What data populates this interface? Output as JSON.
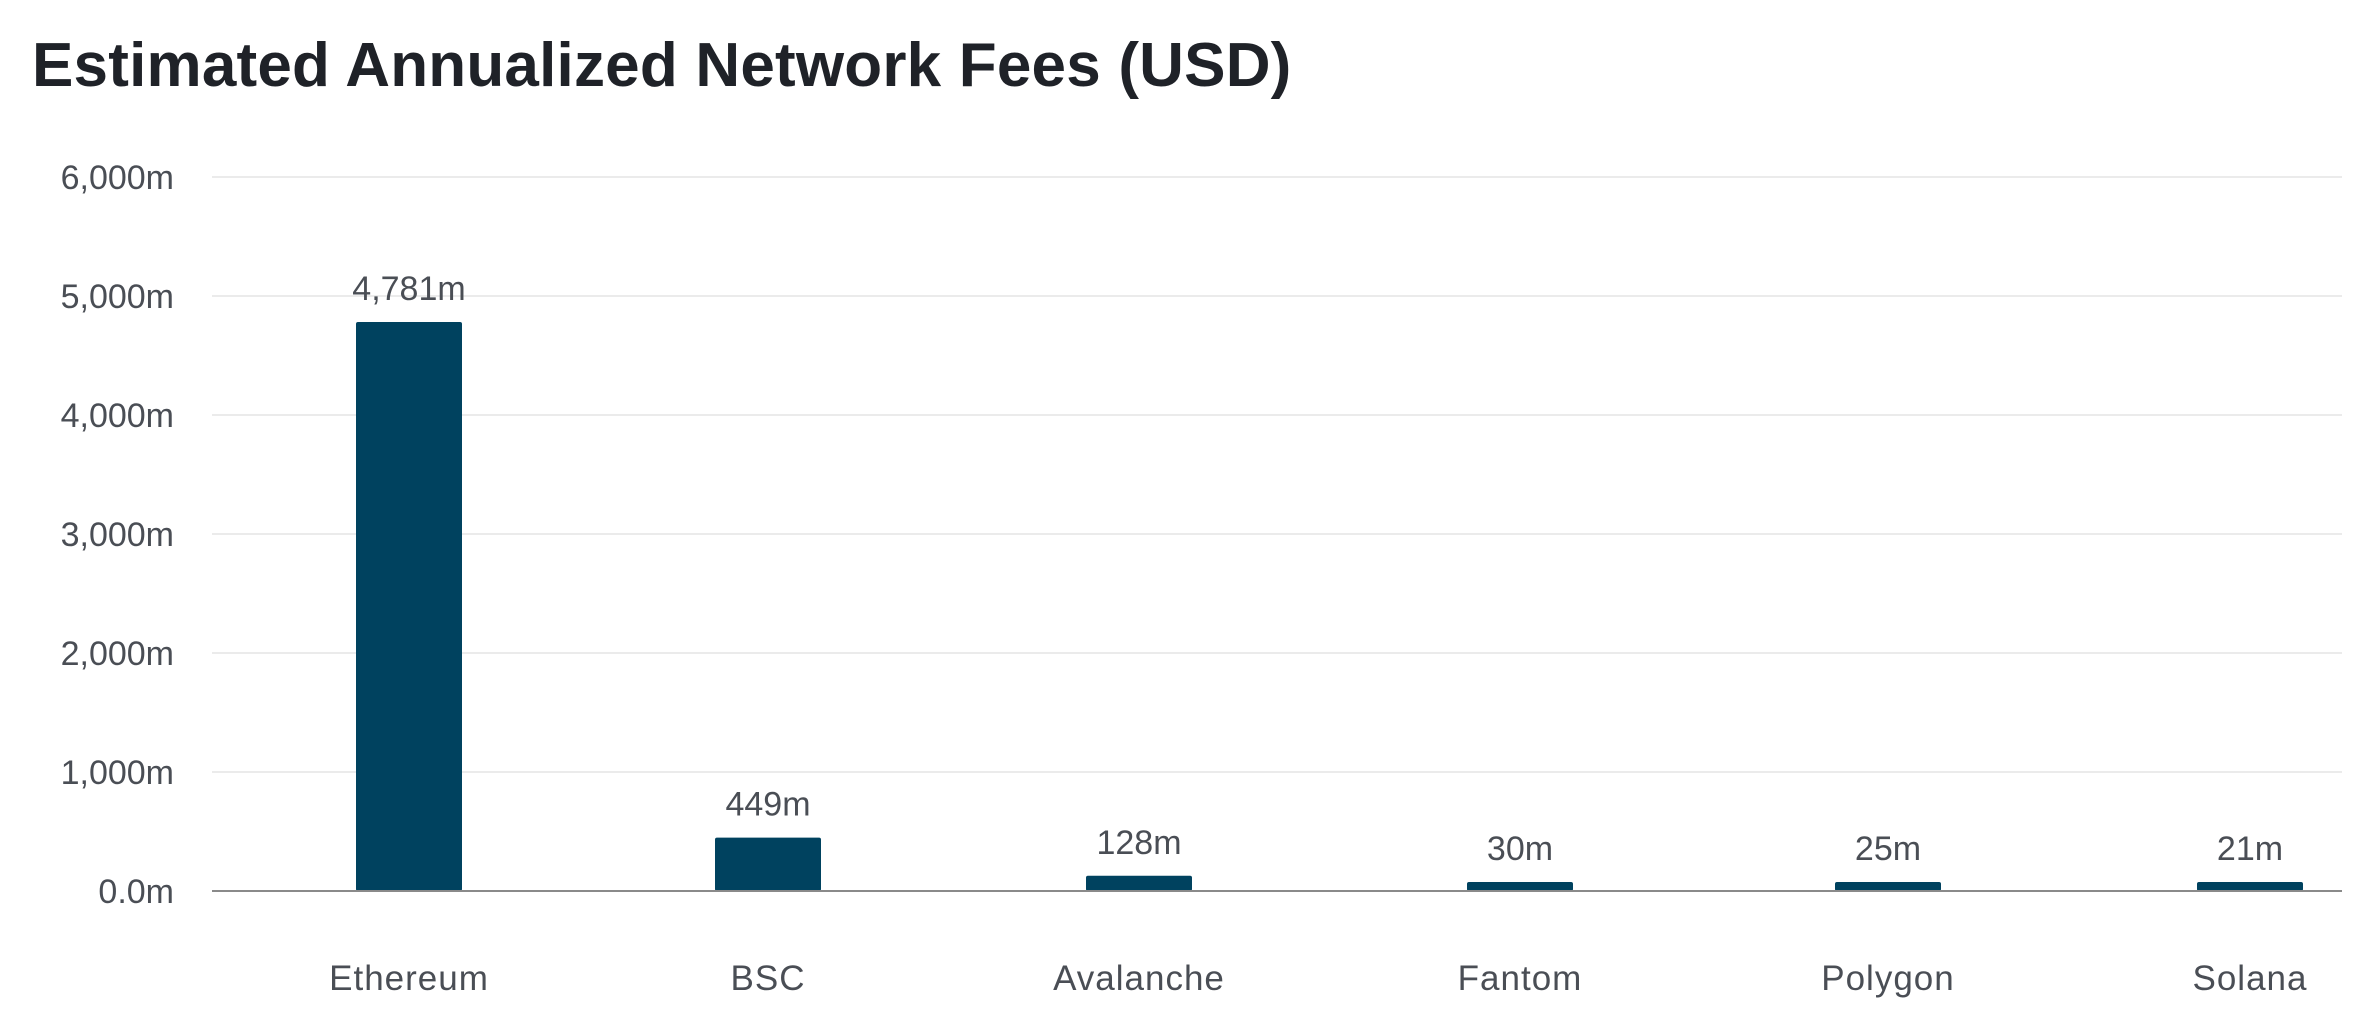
{
  "chart_data": {
    "type": "bar",
    "title": "Estimated Annualized Network Fees (USD)",
    "xlabel": "",
    "ylabel": "",
    "categories": [
      "Ethereum",
      "BSC",
      "Avalanche",
      "Fantom",
      "Polygon",
      "Solana"
    ],
    "values": [
      4781,
      449,
      128,
      30,
      25,
      21
    ],
    "data_labels": [
      "4,781m",
      "449m",
      "128m",
      "30m",
      "25m",
      "21m"
    ],
    "ylim": [
      0,
      6000
    ],
    "yticks": [
      0,
      1000,
      2000,
      3000,
      4000,
      5000,
      6000
    ],
    "ytick_labels": [
      "0.0m",
      "1,000m",
      "2,000m",
      "3,000m",
      "4,000m",
      "5,000m",
      "6,000m"
    ],
    "grid": true,
    "legend": "none",
    "bar_color": "#00425f"
  }
}
